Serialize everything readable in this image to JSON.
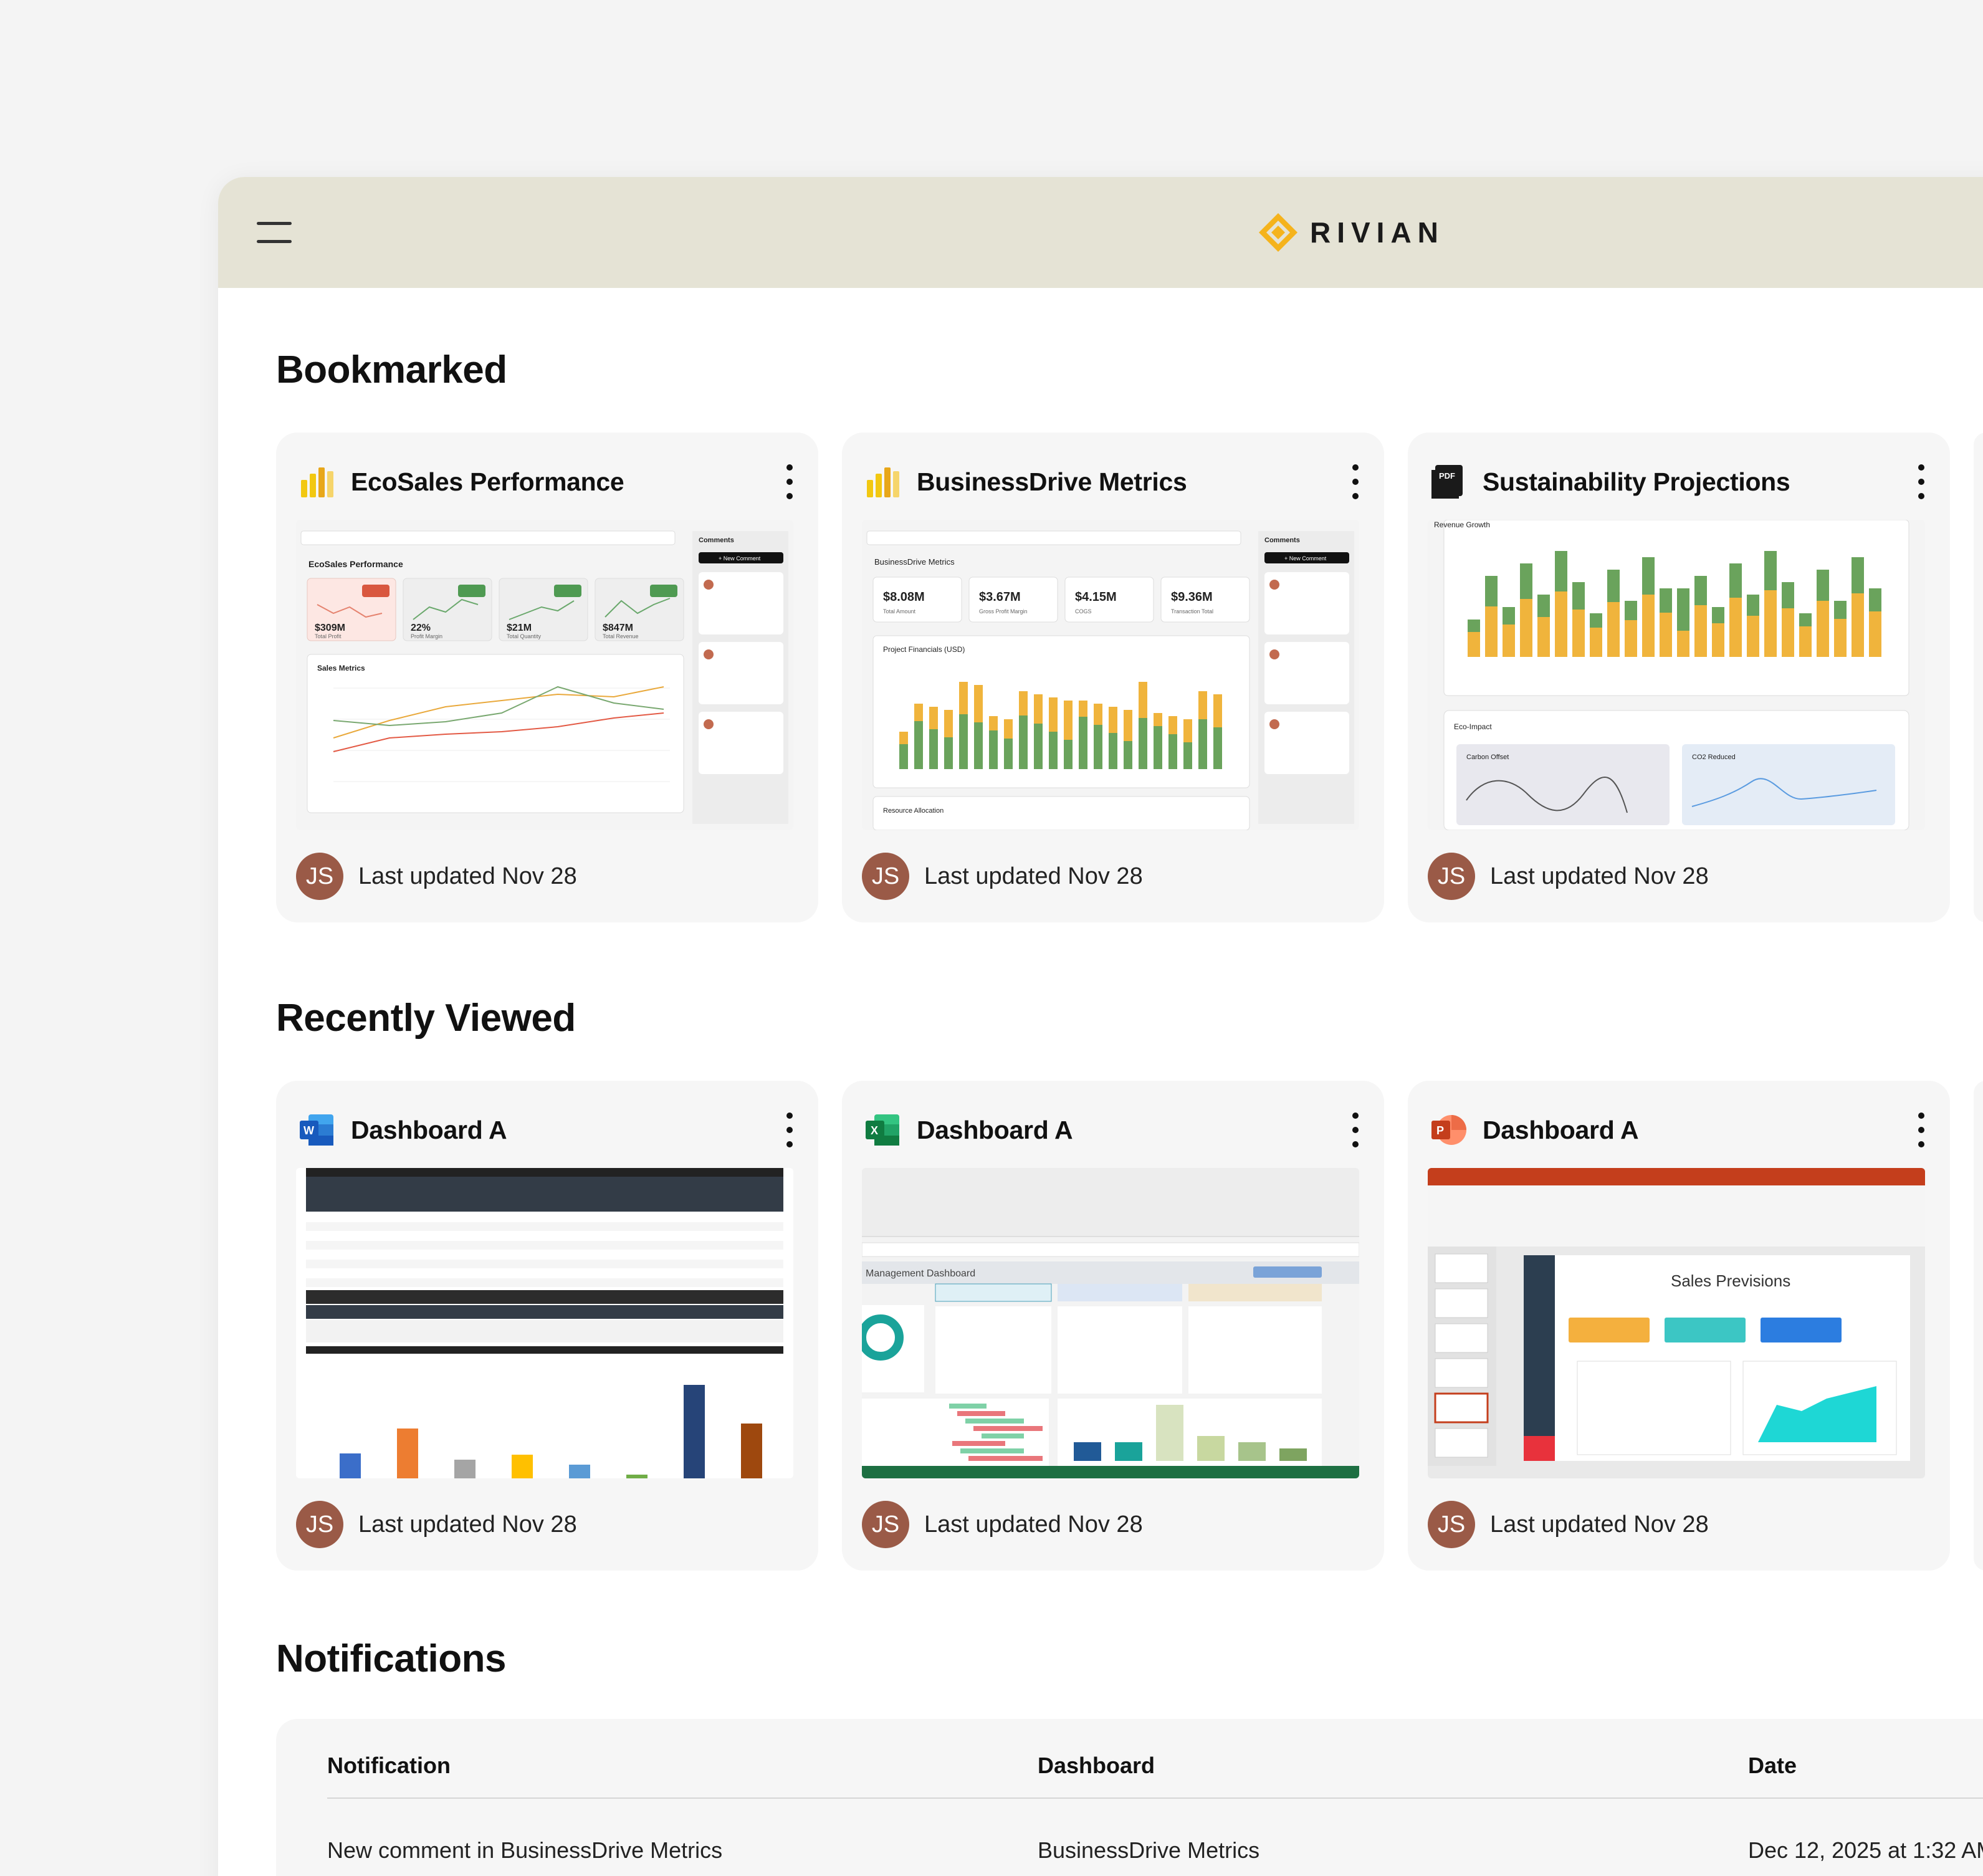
{
  "header": {
    "brand": "RIVIAN",
    "menu_icon": "hamburger-menu-icon",
    "colors": {
      "header_bg": "#e5e3d5",
      "logo_accent": "#f5b31c"
    }
  },
  "bookmarked": {
    "title": "Bookmarked",
    "cards": [
      {
        "title": "EcoSales Performance",
        "icon": "power-bi-icon",
        "avatar": "JS",
        "updated": "Last updated Nov 28"
      },
      {
        "title": "BusinessDrive Metrics",
        "icon": "power-bi-icon",
        "avatar": "JS",
        "updated": "Last updated Nov 28"
      },
      {
        "title": "Sustainability Projections",
        "icon": "pdf-icon",
        "avatar": "JS",
        "updated": "Last updated Nov 28"
      }
    ]
  },
  "recent": {
    "title": "Recently Viewed",
    "cards": [
      {
        "title": "Dashboard A",
        "icon": "word-icon",
        "avatar": "JS",
        "updated": "Last updated Nov 28"
      },
      {
        "title": "Dashboard A",
        "icon": "excel-icon",
        "avatar": "JS",
        "updated": "Last updated Nov 28"
      },
      {
        "title": "Dashboard A",
        "icon": "powerpoint-icon",
        "avatar": "JS",
        "updated": "Last updated Nov 28"
      }
    ]
  },
  "thumbs": {
    "eco": {
      "title": "EcoSales Performance",
      "comments": "Comments",
      "new_comment": "+ New Comment",
      "kpis": [
        "$309M",
        "22%",
        "$21M",
        "$847M"
      ],
      "kpi_labels": [
        "Total Profit",
        "Profit Margin",
        "Total Quantity",
        "Total Revenue"
      ],
      "chart": "Sales Metrics"
    },
    "biz": {
      "title": "BusinessDrive Metrics",
      "comments": "Comments",
      "new_comment": "+ New Comment",
      "kpis": [
        "$8.08M",
        "$3.67M",
        "$4.15M",
        "$9.36M"
      ],
      "kpi_labels": [
        "Total Amount",
        "Gross Profit Margin",
        "COGS",
        "Transaction Total"
      ],
      "chart": "Project Financials (USD)",
      "bottom": "Resource Allocation"
    },
    "sus": {
      "chart": "Revenue Growth",
      "impact": "Eco-Impact",
      "carbon": "Carbon Offset",
      "co2": "CO2 Reduced"
    },
    "xls": {
      "title": "Management Dashboard"
    },
    "ppt": {
      "title": "Sales Previsions"
    }
  },
  "notifications": {
    "title": "Notifications",
    "columns": [
      "Notification",
      "Dashboard",
      "Date"
    ],
    "rows": [
      {
        "notification": "New comment in BusinessDrive Metrics",
        "dashboard": "BusinessDrive Metrics",
        "date": "Dec 12, 2025 at 1:32 AM"
      }
    ]
  }
}
